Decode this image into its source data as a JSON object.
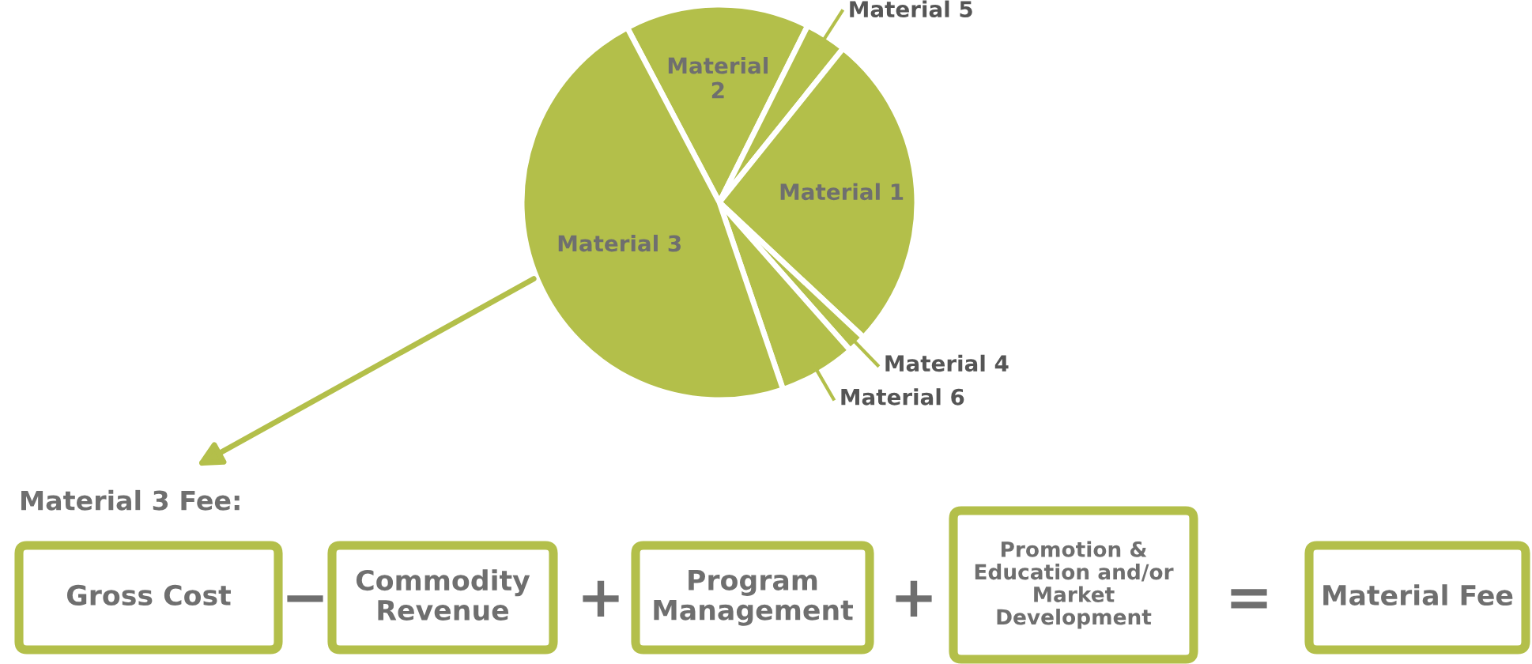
{
  "chart_data": [
    {
      "type": "pie",
      "categories": [
        "Material 2",
        "Material 5",
        "Material 1",
        "Material 4",
        "Material 6",
        "Material 3"
      ],
      "values": [
        15.1,
        3.4,
        26.2,
        1.5,
        6.3,
        47.5
      ],
      "colors": [
        "#b3bf4a",
        "#b3bf4a",
        "#b3bf4a",
        "#b3bf4a",
        "#b3bf4a",
        "#b3bf4a"
      ]
    },
    {
      "type": "other",
      "title": "Material 3 Fee:",
      "annotations": [
        "Gross Cost",
        "−",
        "Commodity\nRevenue",
        "+",
        "Program\nManagement",
        "+",
        "Promotion &\nEducation and/or\nMarket\nDevelopment",
        "=",
        "Material Fee"
      ]
    }
  ]
}
